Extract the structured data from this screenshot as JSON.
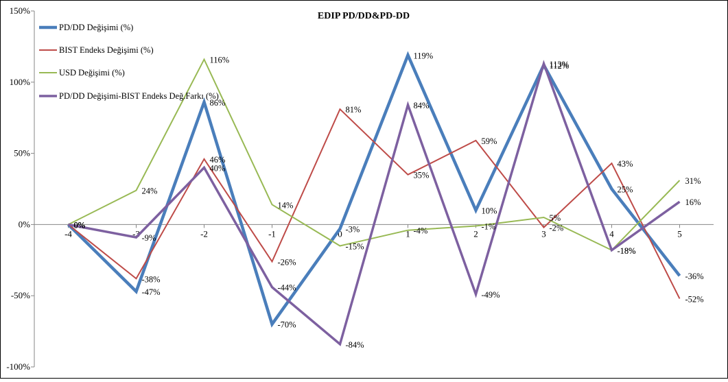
{
  "chart_data": {
    "type": "line",
    "title": "EDIP PD/DD&PD-DD",
    "xlabel": "",
    "ylabel": "",
    "x": [
      -4,
      -3,
      -2,
      -1,
      0,
      1,
      2,
      3,
      4,
      5
    ],
    "x_tick_labels": [
      "-4",
      "-3",
      "-2",
      "-1",
      "0",
      "1",
      "2",
      "3",
      "4",
      "5"
    ],
    "ylim": [
      -100,
      150
    ],
    "y_ticks": [
      -100,
      -50,
      0,
      50,
      100,
      150
    ],
    "y_tick_labels": [
      "-100%",
      "-50%",
      "0%",
      "50%",
      "100%",
      "150%"
    ],
    "grid": false,
    "legend_position": "top-left",
    "series": [
      {
        "name": "PD/DD Değişimi (%)",
        "color": "#4a7ebb",
        "values": [
          0,
          -47,
          86,
          -70,
          -3,
          119,
          10,
          112,
          25,
          -36
        ],
        "labels": [
          "0%",
          "-47%",
          "86%",
          "-70%",
          "-3%",
          "119%",
          "10%",
          "112%",
          "25%",
          "-36%"
        ]
      },
      {
        "name": "BIST Endeks Değişimi (%)",
        "color": "#be4b48",
        "values": [
          0,
          -38,
          46,
          -26,
          81,
          35,
          59,
          -2,
          43,
          -52
        ],
        "labels": [
          "0%",
          "-38%",
          "46%",
          "-26%",
          "81%",
          "35%",
          "59%",
          "-2%",
          "43%",
          "-52%"
        ]
      },
      {
        "name": "USD Değişimi (%)",
        "color": "#98b954",
        "values": [
          0,
          24,
          116,
          14,
          -15,
          -4,
          -1,
          5,
          -18,
          31
        ],
        "labels": [
          "0%",
          "24%",
          "116%",
          "14%",
          "-15%",
          "-4%",
          "-1%",
          "5%",
          "-18%",
          "31%"
        ]
      },
      {
        "name": "PD/DD Değişimi-BIST Endeks Değ.Farkı (%)",
        "color": "#7d60a0",
        "values": [
          0,
          -9,
          40,
          -44,
          -84,
          84,
          -49,
          113,
          -18,
          16
        ],
        "labels": [
          "0%",
          "-9%",
          "40%",
          "-44%",
          "-84%",
          "84%",
          "-49%",
          "113%",
          "-18%",
          "16%"
        ]
      }
    ]
  }
}
